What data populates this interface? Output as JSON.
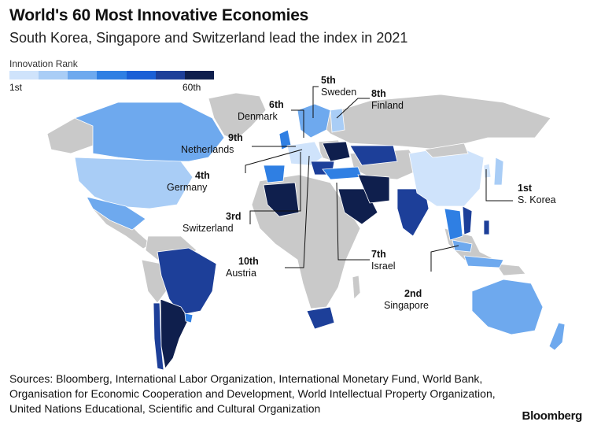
{
  "title": "World's 60 Most Innovative Economies",
  "subtitle": "South Korea, Singapore and Switzerland lead the index in 2021",
  "legend": {
    "title": "Innovation Rank",
    "min_label": "1st",
    "max_label": "60th",
    "colors": [
      "#cfe3fb",
      "#a9cdf6",
      "#6ea9ee",
      "#2f7fe3",
      "#1a5fd6",
      "#1d3f99",
      "#0f1f4d"
    ]
  },
  "colors": {
    "not_ranked": "#c9c9c9",
    "ocean": "#ffffff",
    "leader_line": "#111111"
  },
  "callouts": [
    {
      "rank": "1st",
      "name": "S. Korea"
    },
    {
      "rank": "2nd",
      "name": "Singapore"
    },
    {
      "rank": "3rd",
      "name": "Switzerland"
    },
    {
      "rank": "4th",
      "name": "Germany"
    },
    {
      "rank": "5th",
      "name": "Sweden"
    },
    {
      "rank": "6th",
      "name": "Denmark"
    },
    {
      "rank": "7th",
      "name": "Israel"
    },
    {
      "rank": "8th",
      "name": "Finland"
    },
    {
      "rank": "9th",
      "name": "Netherlands"
    },
    {
      "rank": "10th",
      "name": "Austria"
    }
  ],
  "sources": [
    "Sources: Bloomberg, International Labor Organization, International Monetary Fund, World Bank,",
    "Organisation for Economic Cooperation and Development, World Intellectual Property Organization,",
    "United Nations Educational, Scientific and Cultural Organization"
  ],
  "brand": "Bloomberg"
}
